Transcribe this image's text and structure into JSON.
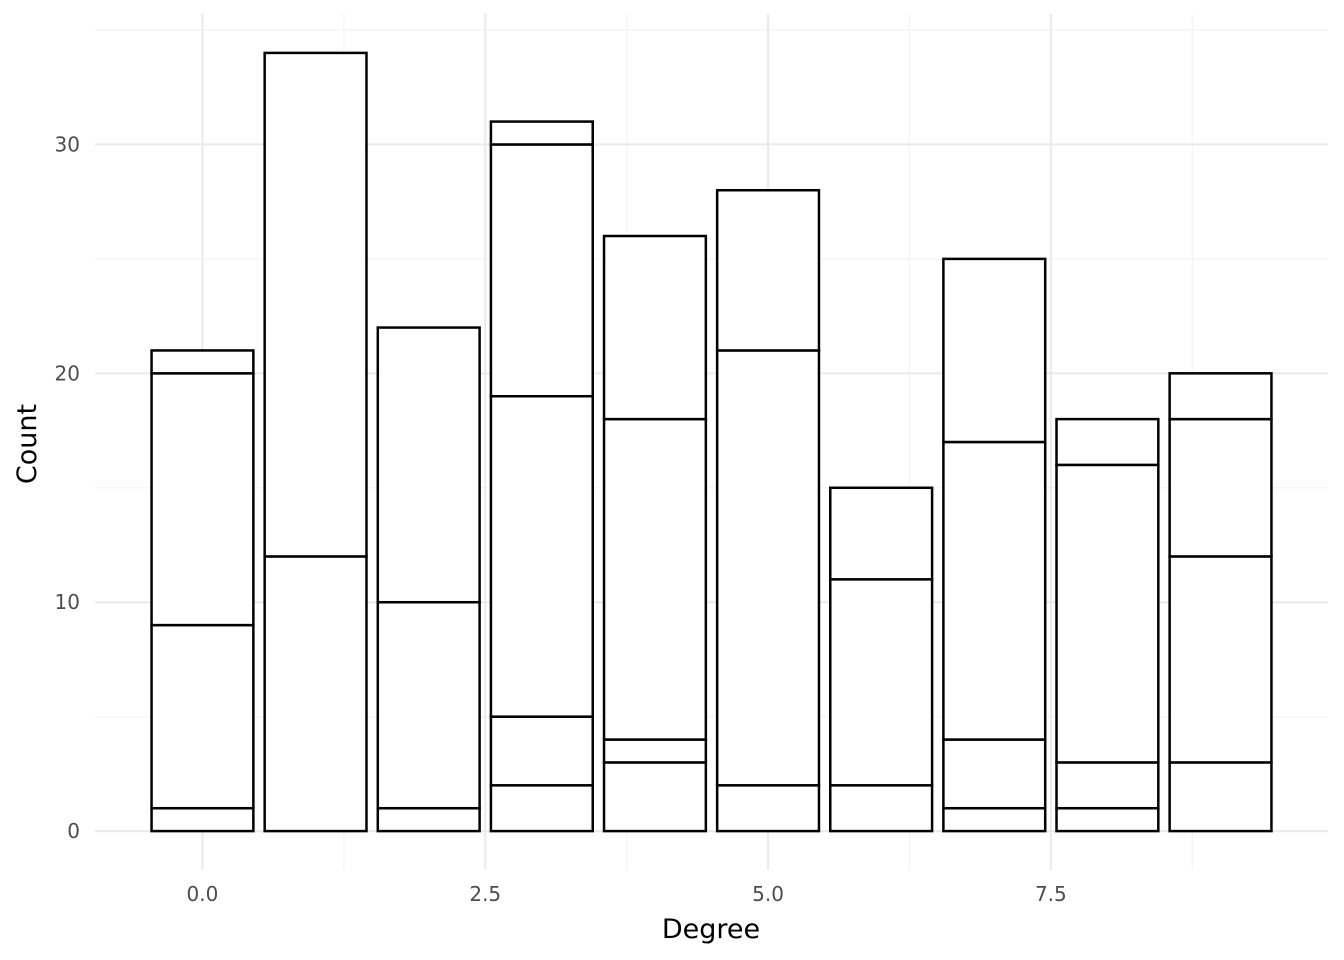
{
  "chart_data": {
    "type": "bar",
    "stacked": true,
    "title": "",
    "xlabel": "Degree",
    "ylabel": "Count",
    "xlim": [
      -0.95,
      9.95
    ],
    "ylim": [
      -1.7,
      35.7
    ],
    "x_ticks": [
      0.0,
      2.5,
      5.0,
      7.5
    ],
    "x_tick_labels": [
      "0.0",
      "2.5",
      "5.0",
      "7.5"
    ],
    "y_ticks": [
      0,
      10,
      20,
      30
    ],
    "y_tick_labels": [
      "0",
      "10",
      "20",
      "30"
    ],
    "grid": true,
    "legend": "none",
    "bar_fill": "#ffffff",
    "bar_outline": "#000000",
    "bars": [
      {
        "x": 0,
        "segment_boundaries": [
          0,
          1,
          9,
          20,
          21
        ]
      },
      {
        "x": 1,
        "segment_boundaries": [
          0,
          12,
          34
        ]
      },
      {
        "x": 2,
        "segment_boundaries": [
          0,
          1,
          10,
          22
        ]
      },
      {
        "x": 3,
        "segment_boundaries": [
          0,
          2,
          5,
          19,
          30,
          31
        ]
      },
      {
        "x": 4,
        "segment_boundaries": [
          0,
          3,
          4,
          18,
          26
        ]
      },
      {
        "x": 5,
        "segment_boundaries": [
          0,
          2,
          21,
          28
        ]
      },
      {
        "x": 6,
        "segment_boundaries": [
          0,
          2,
          11,
          15
        ]
      },
      {
        "x": 7,
        "segment_boundaries": [
          0,
          1,
          4,
          17,
          25
        ]
      },
      {
        "x": 8,
        "segment_boundaries": [
          0,
          1,
          3,
          16,
          18
        ]
      },
      {
        "x": 9,
        "segment_boundaries": [
          0,
          3,
          12,
          18,
          20
        ]
      }
    ]
  }
}
